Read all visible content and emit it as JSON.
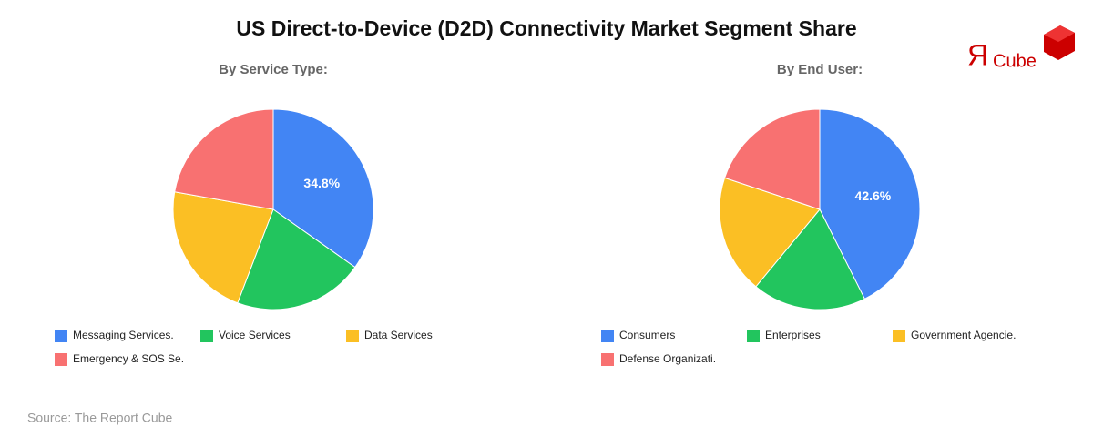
{
  "title": "US Direct-to-Device (D2D) Connectivity Market Segment Share",
  "source": "Source: The Report Cube",
  "logo": {
    "mark": "Я",
    "text": "Cube"
  },
  "chart_data": [
    {
      "type": "pie",
      "subtitle": "By Service Type:",
      "categories": [
        "Messaging Services.",
        "Voice Services",
        "Data Services",
        "Emergency & SOS Se."
      ],
      "values": [
        34.8,
        21.0,
        22.0,
        22.2
      ],
      "value_labels": [
        "34.8%",
        null,
        null,
        null
      ],
      "colors": [
        "#4285f4",
        "#22c55e",
        "#fbbf24",
        "#f87171"
      ]
    },
    {
      "type": "pie",
      "subtitle": "By End User:",
      "categories": [
        "Consumers",
        "Enterprises",
        "Government Agencie.",
        "Defense Organizati."
      ],
      "values": [
        42.6,
        18.4,
        19.1,
        19.9
      ],
      "value_labels": [
        "42.6%",
        null,
        null,
        null
      ],
      "colors": [
        "#4285f4",
        "#22c55e",
        "#fbbf24",
        "#f87171"
      ]
    }
  ]
}
